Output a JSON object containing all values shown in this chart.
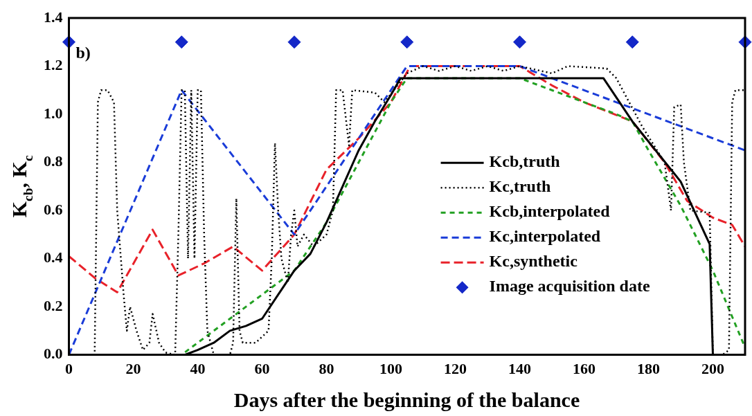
{
  "chart_data": {
    "type": "line",
    "xlabel": "Days after the beginning of the balance",
    "ylabel": "K$_{cb}$, K$_{c}$",
    "annotations": [
      "b)"
    ],
    "xlim": [
      0,
      210
    ],
    "xticks": [
      0,
      20,
      40,
      60,
      80,
      100,
      120,
      140,
      160,
      180,
      200
    ],
    "ylim": [
      0,
      1.4
    ],
    "yticks": [
      {
        "value": 0,
        "label": "0.0"
      },
      {
        "value": 0.2,
        "label": "0.2"
      },
      {
        "value": 0.4,
        "label": "0.4"
      },
      {
        "value": 0.6,
        "label": "0.6"
      },
      {
        "value": 0.8,
        "label": "0.8"
      },
      {
        "value": 1,
        "label": "1.0"
      },
      {
        "value": 1.2,
        "label": "1.2"
      },
      {
        "value": 1.4,
        "label": "1.4"
      }
    ],
    "grid": false,
    "legend": "right",
    "series": [
      {
        "name": "Kcb,truth",
        "color": "#000000",
        "line_style": "solid",
        "marker": "none",
        "x": [
          0,
          36,
          40,
          45,
          50,
          55,
          60,
          65,
          70,
          75,
          80,
          85,
          90,
          95,
          100,
          103,
          166,
          175,
          190,
          199,
          200,
          210
        ],
        "values": [
          0,
          0,
          0.02,
          0.05,
          0.1,
          0.12,
          0.15,
          0.25,
          0.35,
          0.42,
          0.55,
          0.7,
          0.85,
          0.97,
          1.08,
          1.15,
          1.15,
          0.97,
          0.72,
          0.46,
          0,
          0
        ]
      },
      {
        "name": "Kc,truth",
        "color": "#000000",
        "line_style": "dotted",
        "marker": "none",
        "x": [
          0,
          8,
          9,
          10,
          12,
          14,
          15,
          17,
          18,
          19,
          21,
          23,
          25,
          26,
          28,
          30,
          33,
          34,
          35,
          36,
          37,
          38,
          39,
          40,
          41,
          42,
          43,
          45,
          50,
          51,
          52,
          53,
          54,
          58,
          62,
          63,
          64,
          65,
          66,
          68,
          69,
          70,
          71,
          73,
          76,
          80,
          82,
          83,
          85,
          87,
          88,
          95,
          98,
          105,
          110,
          115,
          120,
          125,
          130,
          135,
          140,
          150,
          155,
          167,
          170,
          178,
          185,
          187,
          188,
          190,
          191,
          193,
          199,
          200,
          203,
          205,
          206,
          207,
          210
        ],
        "values": [
          0,
          0,
          1.05,
          1.1,
          1.1,
          1.05,
          0.6,
          0.25,
          0.1,
          0.2,
          0.1,
          0.02,
          0.05,
          0.17,
          0.05,
          0.01,
          0,
          0.5,
          1.1,
          1.1,
          0.4,
          1.1,
          0.4,
          1.1,
          1.1,
          0.5,
          0.1,
          0,
          0,
          0.05,
          0.65,
          0.1,
          0.05,
          0.05,
          0.1,
          0.4,
          0.88,
          0.6,
          0.4,
          0.3,
          0.5,
          0.6,
          0.45,
          0.5,
          0.45,
          0.5,
          0.6,
          1.1,
          1.1,
          0.87,
          1.1,
          1.09,
          1.05,
          1.17,
          1.2,
          1.18,
          1.2,
          1.18,
          1.2,
          1.18,
          1.2,
          1.17,
          1.2,
          1.19,
          1.15,
          0.95,
          0.8,
          0.6,
          1.03,
          1.04,
          0.8,
          0.6,
          0.59,
          0,
          0,
          0.02,
          1.05,
          1.1,
          1.1
        ]
      },
      {
        "name": "Kcb,interpolated",
        "color": "#22a022",
        "line_style": "dashed",
        "marker": "none",
        "x": [
          0,
          35,
          50,
          70,
          80,
          90,
          100,
          105,
          140,
          150,
          160,
          170,
          175,
          180,
          190,
          200,
          210
        ],
        "values": [
          0,
          0,
          0.15,
          0.35,
          0.55,
          0.8,
          1.05,
          1.15,
          1.15,
          1.1,
          1.05,
          1,
          0.97,
          0.85,
          0.62,
          0.35,
          0.03
        ]
      },
      {
        "name": "Kc,interpolated",
        "color": "#1a3cd8",
        "line_style": "dashed",
        "marker": "none",
        "x": [
          0,
          35,
          70,
          105,
          140,
          210
        ],
        "values": [
          0,
          1.1,
          0.5,
          1.2,
          1.2,
          0.85
        ]
      },
      {
        "name": "Kc,synthetic",
        "color": "#e8222a",
        "line_style": "dashed",
        "marker": "none",
        "x": [
          0,
          8,
          15,
          26,
          34,
          42,
          51,
          60,
          70,
          80,
          90,
          100,
          106,
          140,
          150,
          160,
          175,
          185,
          192,
          200,
          206,
          210
        ],
        "values": [
          0.41,
          0.32,
          0.26,
          0.52,
          0.33,
          0.38,
          0.45,
          0.35,
          0.5,
          0.77,
          0.9,
          1.05,
          1.2,
          1.2,
          1.12,
          1.05,
          0.97,
          0.8,
          0.64,
          0.57,
          0.54,
          0.45
        ]
      },
      {
        "name": "Image acquisition date",
        "type": "scatter",
        "color": "#1428c8",
        "marker": "diamond",
        "x": [
          0,
          35,
          70,
          105,
          140,
          175,
          210
        ],
        "values": [
          1.3,
          1.3,
          1.3,
          1.3,
          1.3,
          1.3,
          1.3
        ]
      }
    ]
  }
}
